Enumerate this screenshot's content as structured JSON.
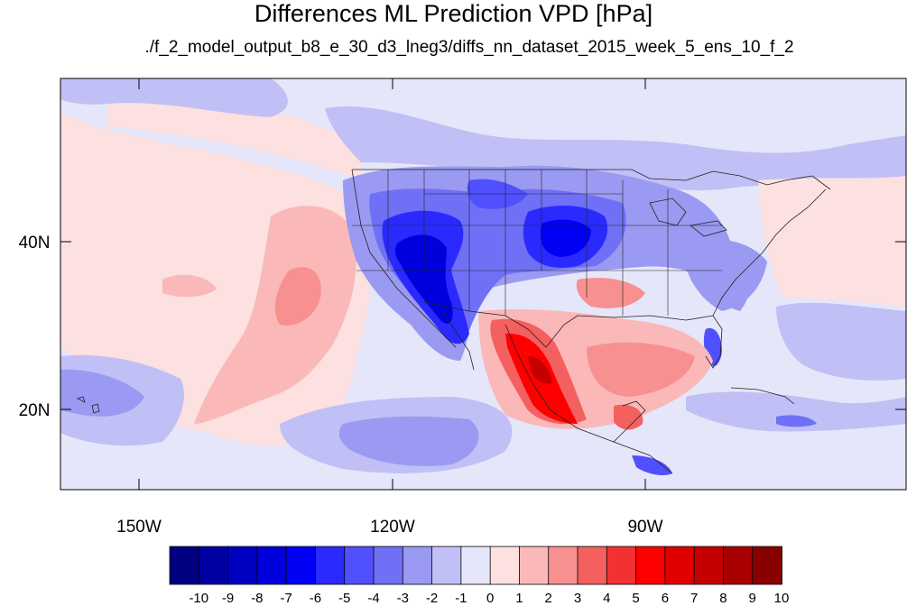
{
  "title": "Differences ML Prediction VPD [hPa]",
  "subtitle": "./f_2_model_output_b8_e_30_d3_lneg3/diffs_nn_dataset_2015_week_5_ens_10_f_2",
  "axes": {
    "longitude_labels": [
      "150W",
      "120W",
      "90W"
    ],
    "latitude_labels": [
      "40N",
      "20N"
    ],
    "lon_range": [
      -159,
      -60
    ],
    "lat_range": [
      11,
      58
    ]
  },
  "colorbar": {
    "labels": [
      "-10",
      "-9",
      "-8",
      "-7",
      "-6",
      "-5",
      "-4",
      "-3",
      "-2",
      "-1",
      "0",
      "1",
      "2",
      "3",
      "4",
      "5",
      "6",
      "7",
      "8",
      "9",
      "10"
    ],
    "colors": [
      "#000080",
      "#0000a0",
      "#0000c0",
      "#0000dc",
      "#0000f4",
      "#2a2aff",
      "#5050ff",
      "#7070f6",
      "#9a9af2",
      "#c0c0f6",
      "#e6e6fa",
      "#fde0e0",
      "#fbb8b8",
      "#f89090",
      "#f46060",
      "#f23232",
      "#ff0000",
      "#e00000",
      "#c40000",
      "#a80000",
      "#880000"
    ]
  },
  "map_regions": [
    {
      "name": "us-west-dry-bias",
      "level": -8
    },
    {
      "name": "central-plains-dry-bias",
      "level": -6
    },
    {
      "name": "mexico-wet-bias",
      "level": 7
    },
    {
      "name": "pacific-positive-band",
      "level": 2
    },
    {
      "name": "gulf-positive",
      "level": 3
    },
    {
      "name": "florida-negative",
      "level": -5
    }
  ]
}
